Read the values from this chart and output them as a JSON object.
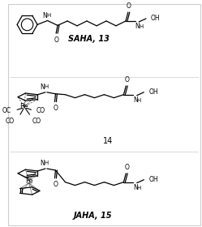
{
  "background_color": "#ffffff",
  "line_color": "#000000",
  "label1": "SAHA, 13",
  "label2": "14",
  "label3": "JAHA, 15",
  "figsize": [
    2.49,
    2.8
  ],
  "dpi": 100,
  "border_color": "#cccccc"
}
